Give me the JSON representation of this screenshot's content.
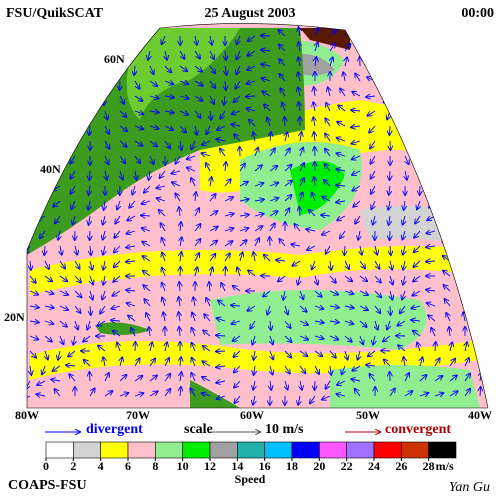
{
  "header": {
    "left": "FSU/QuikSCAT",
    "center": "25 August 2003",
    "right": "00:00"
  },
  "map": {
    "lat_labels": [
      "60N",
      "40N",
      "20N"
    ],
    "lon_labels": [
      "80W",
      "70W",
      "60W",
      "50W",
      "40W"
    ]
  },
  "legend": {
    "divergent": "divergent",
    "scale": "scale",
    "scale_value": "10 m/s",
    "convergent": "convergent"
  },
  "colorbar": {
    "ticks": [
      0,
      2,
      4,
      6,
      8,
      10,
      12,
      14,
      16,
      18,
      20,
      22,
      24,
      26,
      28
    ],
    "colors": [
      "#ffffff",
      "#d3d3d3",
      "#ffff00",
      "#ffc0cb",
      "#90ee90",
      "#00ee00",
      "#a0a0a0",
      "#20b2aa",
      "#00bfff",
      "#0000ff",
      "#ff55ff",
      "#a070ff",
      "#ff0000",
      "#cc3300",
      "#000000"
    ],
    "unit": "m/s",
    "label": "Speed"
  },
  "footer": {
    "left": "COAPS-FSU",
    "right": "Yan Gu"
  }
}
